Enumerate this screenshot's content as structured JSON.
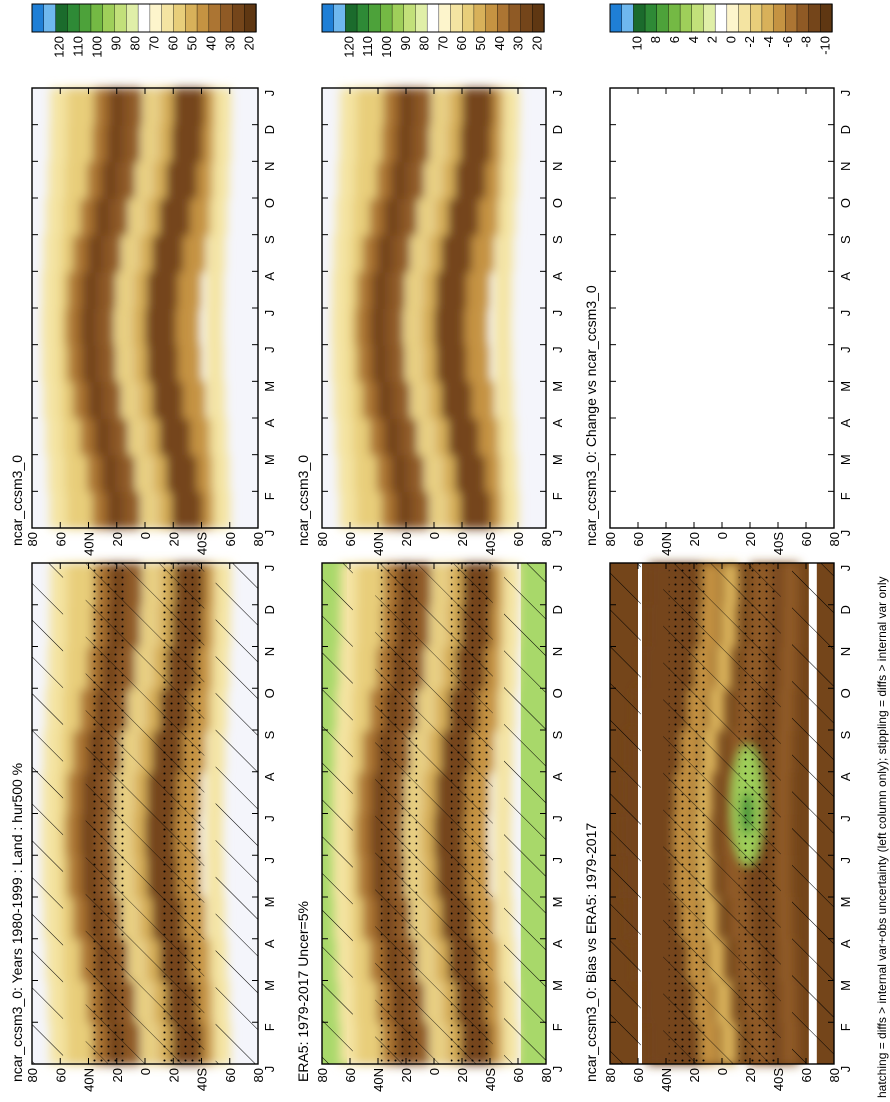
{
  "footer": "hatching = diffs > internal var+obs uncertainty (left column only); stippling = diffs > internal var only",
  "chart_data": [
    {
      "type": "heatmap",
      "title": "ncar_ccsm3_0: Years 1980-1999 : Land : hur500 %",
      "x_ticks": [
        "J",
        "F",
        "M",
        "A",
        "M",
        "J",
        "J",
        "A",
        "S",
        "O",
        "N",
        "D",
        "J"
      ],
      "y_ticks": [
        "80",
        "60",
        "40N",
        "20",
        "0",
        "20",
        "40S",
        "60",
        "80"
      ],
      "colorbar_ticks": [
        "120",
        "110",
        "100",
        "90",
        "80",
        "70",
        "60",
        "50",
        "40",
        "30",
        "20"
      ],
      "colorbar_colors": [
        "#1f7fd6",
        "#6fb8ee",
        "#1b6b2c",
        "#2e8a36",
        "#4da23a",
        "#74b944",
        "#9fcf5a",
        "#c2e07a",
        "#e0efa8",
        "#ffffff",
        "#fdf5cc",
        "#f4e4a2",
        "#e8ce7a",
        "#d8b15a",
        "#c59342",
        "#ac7533",
        "#8f5a25",
        "#74451a",
        "#5f3712"
      ],
      "overlay": "hatching+stippling"
    },
    {
      "type": "heatmap",
      "title": "ncar_ccsm3_0",
      "x_ticks": [
        "J",
        "F",
        "M",
        "A",
        "M",
        "J",
        "J",
        "A",
        "S",
        "O",
        "N",
        "D",
        "J"
      ],
      "y_ticks": [
        "80",
        "60",
        "40N",
        "20",
        "0",
        "20",
        "40S",
        "60",
        "80"
      ],
      "colorbar_ticks": [
        "120",
        "110",
        "100",
        "90",
        "80",
        "70",
        "60",
        "50",
        "40",
        "30",
        "20"
      ],
      "colorbar_colors": [
        "#1f7fd6",
        "#6fb8ee",
        "#1b6b2c",
        "#2e8a36",
        "#4da23a",
        "#74b944",
        "#9fcf5a",
        "#c2e07a",
        "#e0efa8",
        "#ffffff",
        "#fdf5cc",
        "#f4e4a2",
        "#e8ce7a",
        "#d8b15a",
        "#c59342",
        "#ac7533",
        "#8f5a25",
        "#74451a",
        "#5f3712"
      ],
      "overlay": "none"
    },
    {
      "type": "heatmap",
      "title": "ERA5: 1979-2017 Uncer=5%",
      "x_ticks": [
        "J",
        "F",
        "M",
        "A",
        "M",
        "J",
        "J",
        "A",
        "S",
        "O",
        "N",
        "D",
        "J"
      ],
      "y_ticks": [
        "80",
        "60",
        "40N",
        "20",
        "0",
        "20",
        "40S",
        "60",
        "80"
      ],
      "colorbar_ticks": [
        "120",
        "110",
        "100",
        "90",
        "80",
        "70",
        "60",
        "50",
        "40",
        "30",
        "20"
      ],
      "colorbar_colors": [
        "#1f7fd6",
        "#6fb8ee",
        "#1b6b2c",
        "#2e8a36",
        "#4da23a",
        "#74b944",
        "#9fcf5a",
        "#c2e07a",
        "#e0efa8",
        "#ffffff",
        "#fdf5cc",
        "#f4e4a2",
        "#e8ce7a",
        "#d8b15a",
        "#c59342",
        "#ac7533",
        "#8f5a25",
        "#74451a",
        "#5f3712"
      ],
      "overlay": "hatching+stippling"
    },
    {
      "type": "heatmap",
      "title": "ncar_ccsm3_0",
      "x_ticks": [
        "J",
        "F",
        "M",
        "A",
        "M",
        "J",
        "J",
        "A",
        "S",
        "O",
        "N",
        "D",
        "J"
      ],
      "y_ticks": [
        "80",
        "60",
        "40N",
        "20",
        "0",
        "20",
        "40S",
        "60",
        "80"
      ],
      "colorbar_ticks": [
        "120",
        "110",
        "100",
        "90",
        "80",
        "70",
        "60",
        "50",
        "40",
        "30",
        "20"
      ],
      "colorbar_colors": [
        "#1f7fd6",
        "#6fb8ee",
        "#1b6b2c",
        "#2e8a36",
        "#4da23a",
        "#74b944",
        "#9fcf5a",
        "#c2e07a",
        "#e0efa8",
        "#ffffff",
        "#fdf5cc",
        "#f4e4a2",
        "#e8ce7a",
        "#d8b15a",
        "#c59342",
        "#ac7533",
        "#8f5a25",
        "#74451a",
        "#5f3712"
      ],
      "overlay": "none"
    },
    {
      "type": "heatmap",
      "title": "ncar_ccsm3_0: Bias vs ERA5: 1979-2017",
      "x_ticks": [
        "J",
        "F",
        "M",
        "A",
        "M",
        "J",
        "J",
        "A",
        "S",
        "O",
        "N",
        "D",
        "J"
      ],
      "y_ticks": [
        "80",
        "60",
        "40N",
        "20",
        "0",
        "20",
        "40S",
        "60",
        "80"
      ],
      "colorbar_ticks": [
        "10",
        "8",
        "6",
        "4",
        "2",
        "0",
        "-2",
        "-4",
        "-6",
        "-8",
        "-10"
      ],
      "colorbar_colors": [
        "#1f7fd6",
        "#6fb8ee",
        "#1b6b2c",
        "#2e8a36",
        "#4da23a",
        "#74b944",
        "#9fcf5a",
        "#c2e07a",
        "#e0efa8",
        "#ffffff",
        "#fdf5cc",
        "#f4e4a2",
        "#e8ce7a",
        "#d8b15a",
        "#c59342",
        "#ac7533",
        "#8f5a25",
        "#74451a",
        "#5f3712"
      ],
      "overlay": "hatching+stippling"
    },
    {
      "type": "heatmap",
      "title": "ncar_ccsm3_0: Change vs ncar_ccsm3_0",
      "x_ticks": [
        "J",
        "F",
        "M",
        "A",
        "M",
        "J",
        "J",
        "A",
        "S",
        "O",
        "N",
        "D",
        "J"
      ],
      "y_ticks": [
        "80",
        "60",
        "40N",
        "20",
        "0",
        "20",
        "40S",
        "60",
        "80"
      ],
      "colorbar_ticks": [
        "10",
        "8",
        "6",
        "4",
        "2",
        "0",
        "-2",
        "-4",
        "-6",
        "-8",
        "-10"
      ],
      "colorbar_colors": [
        "#1f7fd6",
        "#6fb8ee",
        "#1b6b2c",
        "#2e8a36",
        "#4da23a",
        "#74b944",
        "#9fcf5a",
        "#c2e07a",
        "#e0efa8",
        "#ffffff",
        "#fdf5cc",
        "#f4e4a2",
        "#e8ce7a",
        "#d8b15a",
        "#c59342",
        "#ac7533",
        "#8f5a25",
        "#74451a",
        "#5f3712"
      ],
      "overlay": "none",
      "field": "empty"
    }
  ]
}
